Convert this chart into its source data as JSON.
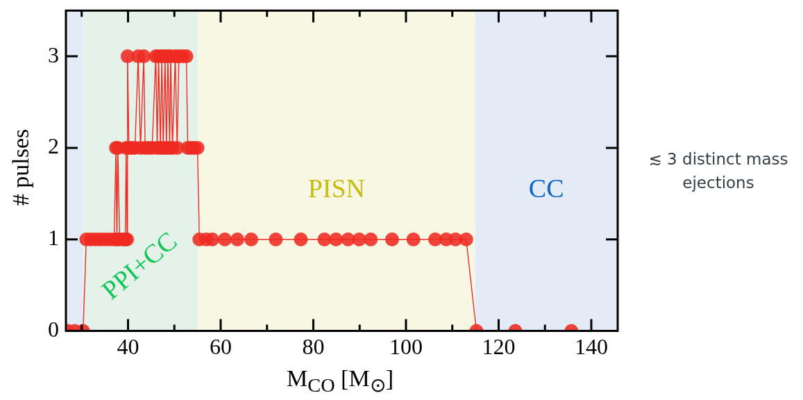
{
  "chart_data": {
    "type": "line",
    "xlabel": "M$_{CO}$ [M$_{⊙}$]",
    "ylabel": "# pulses",
    "series": [
      {
        "color": "#ee2a22",
        "x": [
          27,
          28.5,
          30.3,
          31,
          32,
          33,
          34,
          35,
          36,
          37,
          37.4,
          37.6,
          37.8,
          38.2,
          39,
          39.4,
          39.6,
          39.8,
          39.9,
          40.2,
          40.8,
          41.5,
          42.2,
          42.7,
          43.4,
          43.7,
          44.4,
          45.2,
          46.0,
          46.3,
          46.6,
          47.0,
          47.3,
          47.6,
          48.0,
          48.3,
          48.6,
          49.0,
          49.2,
          49.6,
          50.2,
          50.6,
          51.0,
          51.8,
          52.6,
          52.9,
          53.6,
          54.3,
          55.0,
          55.4,
          56.9,
          58.2,
          60.9,
          63.6,
          66.6,
          71.9,
          77.3,
          82.4,
          84.9,
          87.5,
          89.9,
          92.4,
          97,
          101.6,
          106.3,
          108.7,
          110.7,
          113,
          115.2,
          123.6,
          135.7
        ],
        "values": [
          0,
          0,
          0,
          1,
          1,
          1,
          1,
          1,
          1,
          1,
          2,
          1,
          2,
          1,
          1,
          1,
          2,
          1,
          3,
          2,
          2,
          2,
          3,
          2,
          3,
          2,
          2,
          2,
          3,
          2,
          3,
          2,
          3,
          2,
          3,
          2,
          3,
          2,
          3,
          2,
          3,
          2,
          3,
          3,
          3,
          2,
          2,
          2,
          2,
          1,
          1,
          1,
          1,
          1,
          1,
          1,
          1,
          1,
          1,
          1,
          1,
          1,
          1,
          1,
          1,
          1,
          1,
          1,
          0,
          0,
          0
        ]
      }
    ],
    "xlim": [
      26.6,
      145.7
    ],
    "ylim": [
      0,
      3.5
    ],
    "xticks": [
      {
        "value": 30,
        "label": null
      },
      40,
      {
        "value": 50,
        "label": null
      },
      60,
      {
        "value": 70,
        "label": null
      },
      80,
      {
        "value": 90,
        "label": null
      },
      100,
      {
        "value": 110,
        "label": null
      },
      120,
      {
        "value": 130,
        "label": null
      },
      140
    ],
    "yticks": [
      0,
      1,
      2,
      3
    ],
    "grid": false,
    "legend": false,
    "marker": "circle",
    "line_style": "solid",
    "bands": [
      {
        "axis": "x",
        "from": 26.6,
        "to": 30.3,
        "color": "#e3ecf6"
      },
      {
        "axis": "x",
        "from": 30.3,
        "to": 55.1,
        "color": "#e5f2ea",
        "label": "PPI+CC"
      },
      {
        "axis": "x",
        "from": 55.1,
        "to": 114.9,
        "color": "#f8f7e3",
        "label": "PISN"
      },
      {
        "axis": "x",
        "from": 114.9,
        "to": 145.7,
        "color": "#e3ecf6",
        "label": "CC"
      }
    ],
    "annotations": [
      "≲ 3 distinct mass ejections"
    ]
  }
}
